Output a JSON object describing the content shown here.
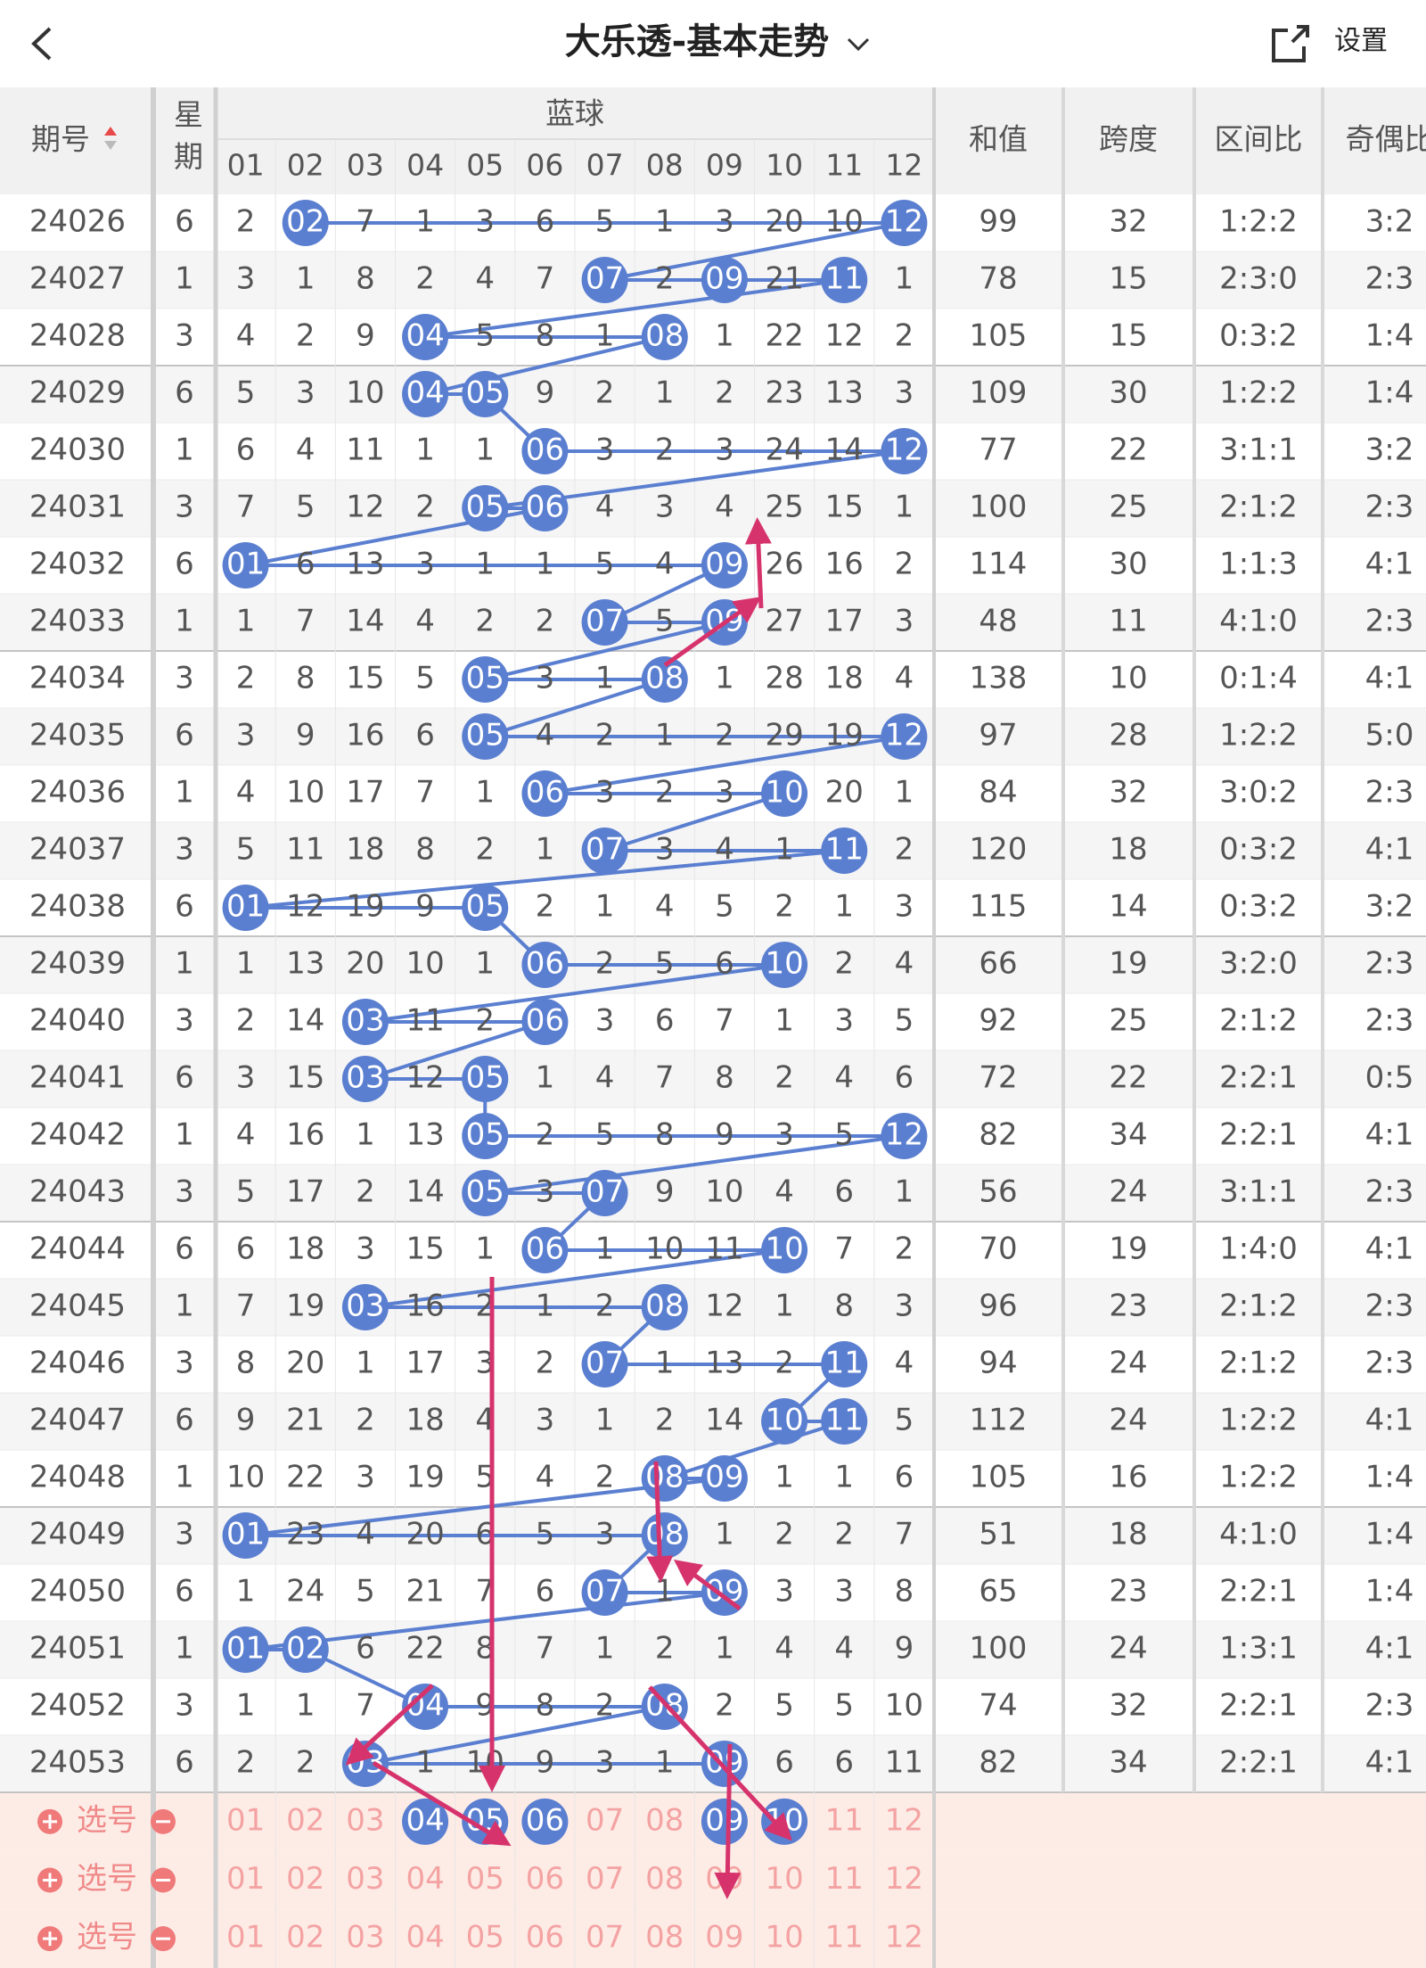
{
  "header": {
    "title": "大乐透-基本走势",
    "settings": "设置"
  },
  "table": {
    "columns": {
      "issue": "期号",
      "weekday": "星期",
      "blue": "蓝球",
      "blue_numbers": [
        "01",
        "02",
        "03",
        "04",
        "05",
        "06",
        "07",
        "08",
        "09",
        "10",
        "11",
        "12"
      ],
      "sum": "和值",
      "span": "跨度",
      "zone_ratio": "区间比",
      "odd_even": "奇偶比"
    },
    "rows": [
      [
        "24026",
        "6",
        "2",
        "02",
        "7",
        "1",
        "3",
        "6",
        "5",
        "1",
        "3",
        "20",
        "10",
        "12",
        "99",
        "32",
        "1:2:2",
        "3:2"
      ],
      [
        "24027",
        "1",
        "3",
        "1",
        "8",
        "2",
        "4",
        "7",
        "07",
        "2",
        "09",
        "21",
        "11",
        "1",
        "78",
        "15",
        "2:3:0",
        "2:3"
      ],
      [
        "24028",
        "3",
        "4",
        "2",
        "9",
        "04",
        "5",
        "8",
        "1",
        "08",
        "1",
        "22",
        "12",
        "2",
        "105",
        "15",
        "0:3:2",
        "1:4"
      ],
      [
        "24029",
        "6",
        "5",
        "3",
        "10",
        "04",
        "05",
        "9",
        "2",
        "1",
        "2",
        "23",
        "13",
        "3",
        "109",
        "30",
        "1:2:2",
        "1:4"
      ],
      [
        "24030",
        "1",
        "6",
        "4",
        "11",
        "1",
        "1",
        "06",
        "3",
        "2",
        "3",
        "24",
        "14",
        "12",
        "77",
        "22",
        "3:1:1",
        "3:2"
      ],
      [
        "24031",
        "3",
        "7",
        "5",
        "12",
        "2",
        "05",
        "06",
        "4",
        "3",
        "4",
        "25",
        "15",
        "1",
        "100",
        "25",
        "2:1:2",
        "2:3"
      ],
      [
        "24032",
        "6",
        "01",
        "6",
        "13",
        "3",
        "1",
        "1",
        "5",
        "4",
        "09",
        "26",
        "16",
        "2",
        "114",
        "30",
        "1:1:3",
        "4:1"
      ],
      [
        "24033",
        "1",
        "1",
        "7",
        "14",
        "4",
        "2",
        "2",
        "07",
        "5",
        "09",
        "27",
        "17",
        "3",
        "48",
        "11",
        "4:1:0",
        "2:3"
      ],
      [
        "24034",
        "3",
        "2",
        "8",
        "15",
        "5",
        "05",
        "3",
        "1",
        "08",
        "1",
        "28",
        "18",
        "4",
        "138",
        "10",
        "0:1:4",
        "4:1"
      ],
      [
        "24035",
        "6",
        "3",
        "9",
        "16",
        "6",
        "05",
        "4",
        "2",
        "1",
        "2",
        "29",
        "19",
        "12",
        "97",
        "28",
        "1:2:2",
        "5:0"
      ],
      [
        "24036",
        "1",
        "4",
        "10",
        "17",
        "7",
        "1",
        "06",
        "3",
        "2",
        "3",
        "10",
        "20",
        "1",
        "84",
        "32",
        "3:0:2",
        "2:3"
      ],
      [
        "24037",
        "3",
        "5",
        "11",
        "18",
        "8",
        "2",
        "1",
        "07",
        "3",
        "4",
        "1",
        "11",
        "2",
        "120",
        "18",
        "0:3:2",
        "4:1"
      ],
      [
        "24038",
        "6",
        "01",
        "12",
        "19",
        "9",
        "05",
        "2",
        "1",
        "4",
        "5",
        "2",
        "1",
        "3",
        "115",
        "14",
        "0:3:2",
        "3:2"
      ],
      [
        "24039",
        "1",
        "1",
        "13",
        "20",
        "10",
        "1",
        "06",
        "2",
        "5",
        "6",
        "10",
        "2",
        "4",
        "66",
        "19",
        "3:2:0",
        "2:3"
      ],
      [
        "24040",
        "3",
        "2",
        "14",
        "03",
        "11",
        "2",
        "06",
        "3",
        "6",
        "7",
        "1",
        "3",
        "5",
        "92",
        "25",
        "2:1:2",
        "2:3"
      ],
      [
        "24041",
        "6",
        "3",
        "15",
        "03",
        "12",
        "05",
        "1",
        "4",
        "7",
        "8",
        "2",
        "4",
        "6",
        "72",
        "22",
        "2:2:1",
        "0:5"
      ],
      [
        "24042",
        "1",
        "4",
        "16",
        "1",
        "13",
        "05",
        "2",
        "5",
        "8",
        "9",
        "3",
        "5",
        "12",
        "82",
        "34",
        "2:2:1",
        "4:1"
      ],
      [
        "24043",
        "3",
        "5",
        "17",
        "2",
        "14",
        "05",
        "3",
        "07",
        "9",
        "10",
        "4",
        "6",
        "1",
        "56",
        "24",
        "3:1:1",
        "2:3"
      ],
      [
        "24044",
        "6",
        "6",
        "18",
        "3",
        "15",
        "1",
        "06",
        "1",
        "10",
        "11",
        "10",
        "7",
        "2",
        "70",
        "19",
        "1:4:0",
        "4:1"
      ],
      [
        "24045",
        "1",
        "7",
        "19",
        "03",
        "16",
        "2",
        "1",
        "2",
        "08",
        "12",
        "1",
        "8",
        "3",
        "96",
        "23",
        "2:1:2",
        "2:3"
      ],
      [
        "24046",
        "3",
        "8",
        "20",
        "1",
        "17",
        "3",
        "2",
        "07",
        "1",
        "13",
        "2",
        "11",
        "4",
        "94",
        "24",
        "2:1:2",
        "2:3"
      ],
      [
        "24047",
        "6",
        "9",
        "21",
        "2",
        "18",
        "4",
        "3",
        "1",
        "2",
        "14",
        "10",
        "11",
        "5",
        "112",
        "24",
        "1:2:2",
        "4:1"
      ],
      [
        "24048",
        "1",
        "10",
        "22",
        "3",
        "19",
        "5",
        "4",
        "2",
        "08",
        "09",
        "1",
        "1",
        "6",
        "105",
        "16",
        "1:2:2",
        "1:4"
      ],
      [
        "24049",
        "3",
        "01",
        "23",
        "4",
        "20",
        "6",
        "5",
        "3",
        "08",
        "1",
        "2",
        "2",
        "7",
        "51",
        "18",
        "4:1:0",
        "1:4"
      ],
      [
        "24050",
        "6",
        "1",
        "24",
        "5",
        "21",
        "7",
        "6",
        "07",
        "1",
        "09",
        "3",
        "3",
        "8",
        "65",
        "23",
        "2:2:1",
        "1:4"
      ],
      [
        "24051",
        "1",
        "01",
        "02",
        "6",
        "22",
        "8",
        "7",
        "1",
        "2",
        "1",
        "4",
        "4",
        "9",
        "100",
        "24",
        "1:3:1",
        "4:1"
      ],
      [
        "24052",
        "3",
        "1",
        "1",
        "7",
        "04",
        "9",
        "8",
        "2",
        "08",
        "2",
        "5",
        "5",
        "10",
        "74",
        "32",
        "2:2:1",
        "2:3"
      ],
      [
        "24053",
        "6",
        "2",
        "2",
        "03",
        "1",
        "10",
        "9",
        "3",
        "1",
        "09",
        "6",
        "6",
        "11",
        "82",
        "34",
        "2:2:1",
        "4:1"
      ]
    ]
  },
  "selection": {
    "label": "选号",
    "rows": [
      [
        "04",
        "05",
        "06",
        "09",
        "10"
      ],
      [],
      []
    ]
  }
}
